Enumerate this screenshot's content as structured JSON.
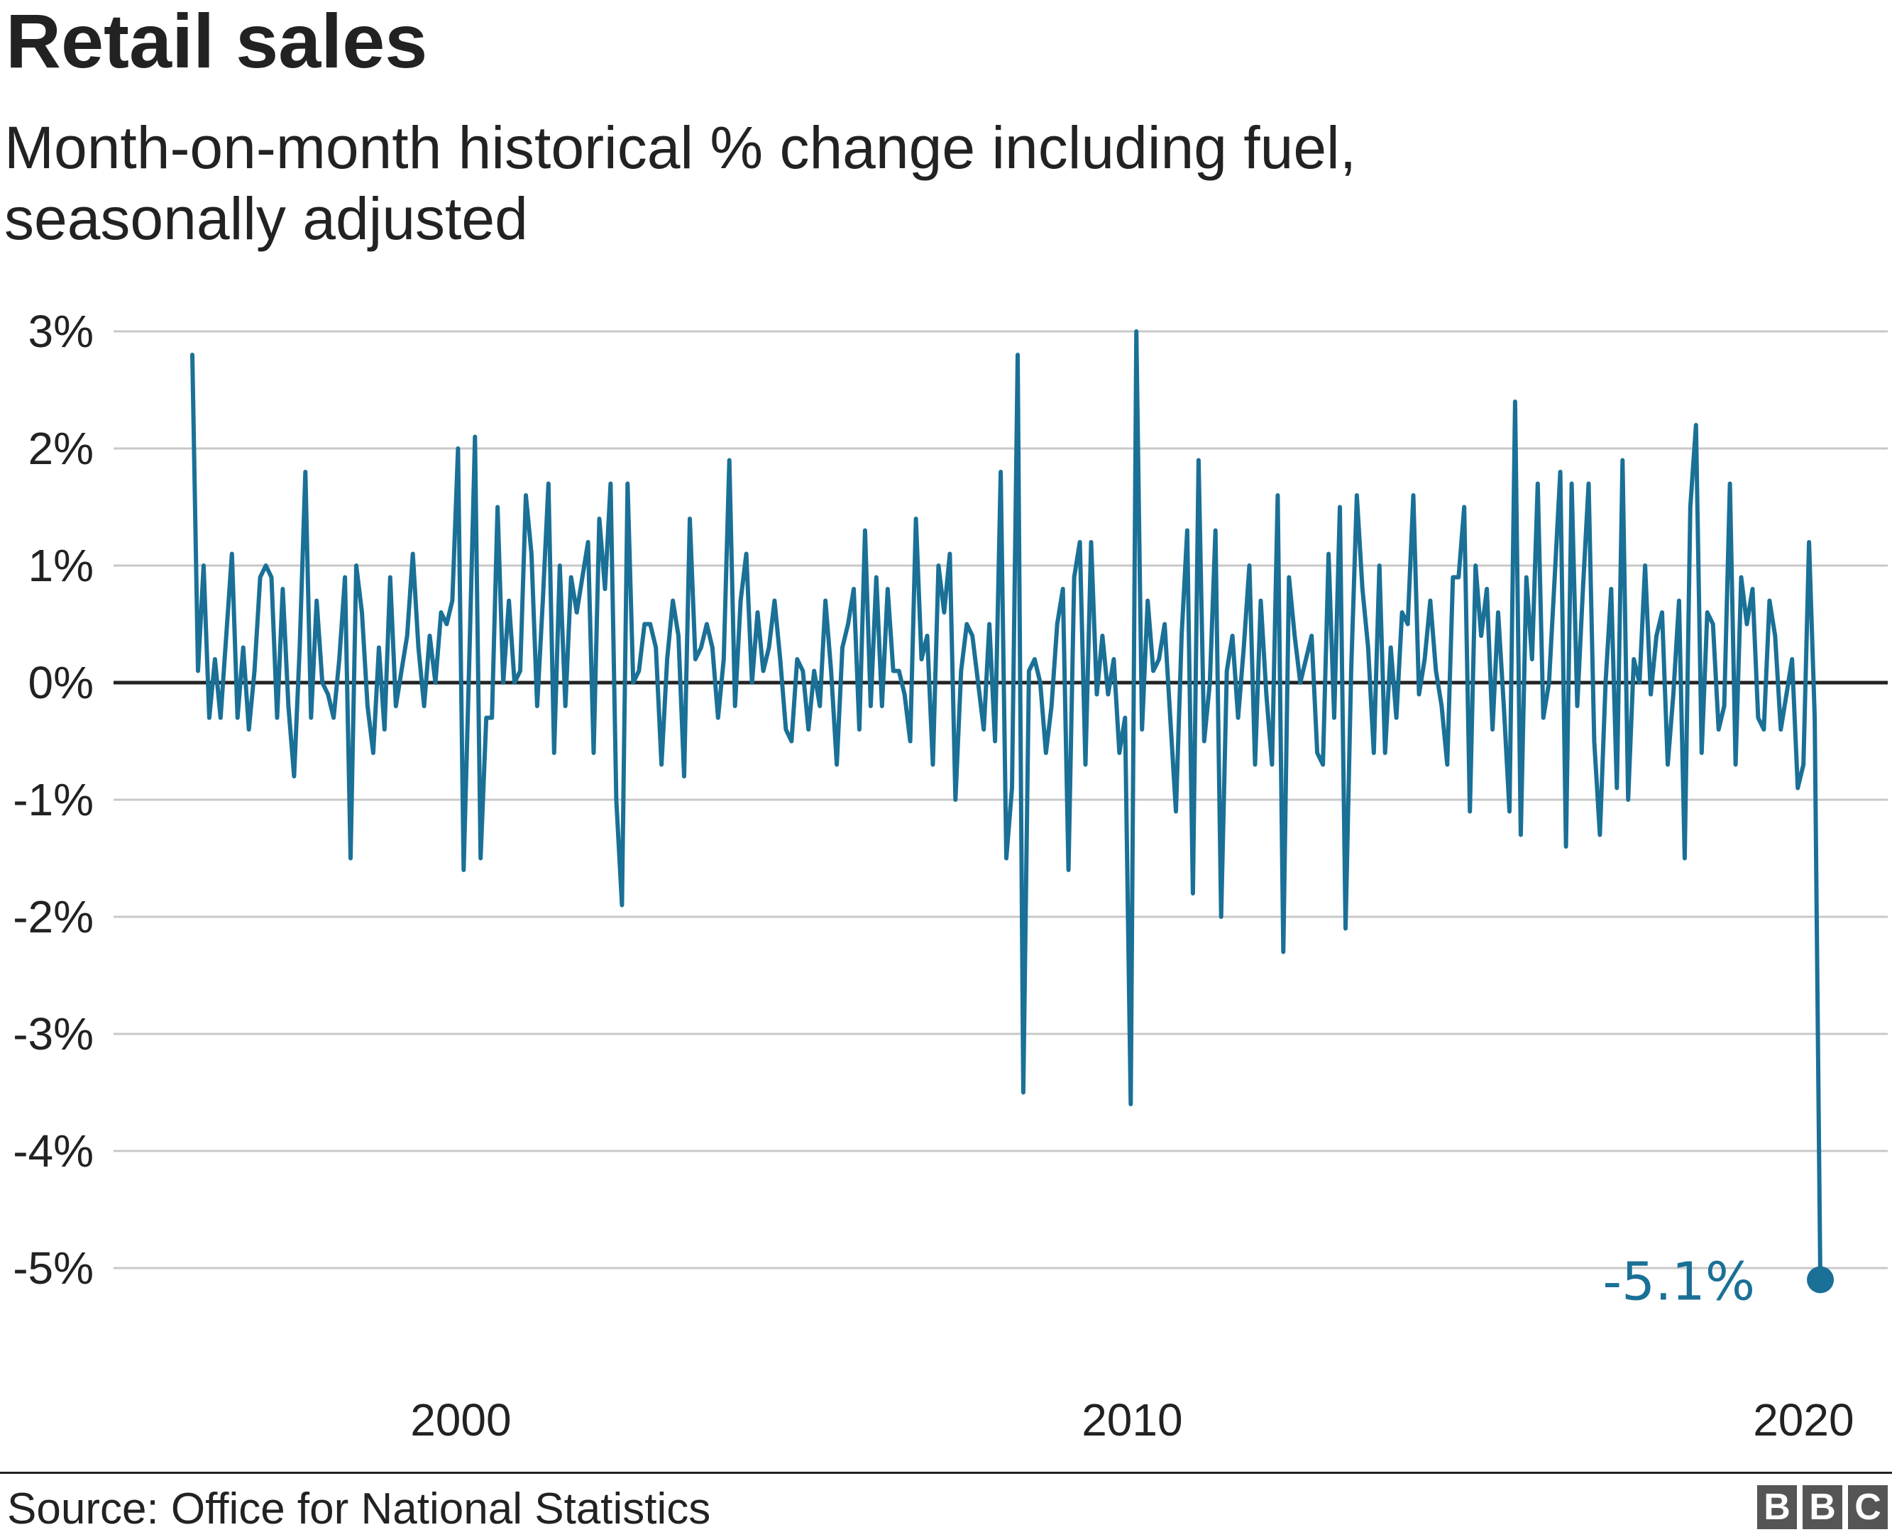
{
  "title": "Retail sales",
  "subtitle": "Month-on-month historical % change including fuel, seasonally adjusted",
  "source": "Source: Office for National Statistics",
  "logo": [
    "B",
    "B",
    "C"
  ],
  "colors": {
    "line": "#1a7096",
    "zero_line": "#222222",
    "grid": "#c8c8c8",
    "text": "#222222"
  },
  "chart_data": {
    "type": "line",
    "title": "Retail sales",
    "subtitle": "Month-on-month historical % change including fuel, seasonally adjusted",
    "xlabel": "",
    "ylabel": "",
    "xlim": [
      1996.0,
      2020.4
    ],
    "ylim": [
      -5,
      3
    ],
    "grid": true,
    "y_ticks": [
      3,
      2,
      1,
      0,
      -1,
      -2,
      -3,
      -4,
      -5
    ],
    "y_tick_labels": [
      "3%",
      "2%",
      "1%",
      "0%",
      "-1%",
      "-2%",
      "-3%",
      "-4%",
      "-5%"
    ],
    "x_ticks": [
      2000,
      2010,
      2020
    ],
    "x_tick_labels": [
      "2000",
      "2010",
      "2020"
    ],
    "annotation": {
      "text": "-5.1%",
      "x": 2020.25,
      "y": -5.1
    },
    "series": [
      {
        "start": "1996-01",
        "frequency": "monthly",
        "values": [
          2.8,
          0.1,
          1.0,
          -0.3,
          0.2,
          -0.3,
          0.4,
          1.1,
          -0.3,
          0.3,
          -0.4,
          0.1,
          0.9,
          1.0,
          0.9,
          -0.3,
          0.8,
          -0.2,
          -0.8,
          0.3,
          1.8,
          -0.3,
          0.7,
          0.0,
          -0.1,
          -0.3,
          0.2,
          0.9,
          -1.5,
          1.0,
          0.6,
          -0.2,
          -0.6,
          0.3,
          -0.4,
          0.9,
          -0.2,
          0.1,
          0.4,
          1.1,
          0.3,
          -0.2,
          0.4,
          0.0,
          0.6,
          0.5,
          0.7,
          2.0,
          -1.6,
          0.2,
          2.1,
          -1.5,
          -0.3,
          -0.3,
          1.5,
          0.0,
          0.7,
          0.0,
          0.1,
          1.6,
          1.1,
          -0.2,
          0.7,
          1.7,
          -0.6,
          1.0,
          -0.2,
          0.9,
          0.6,
          0.9,
          1.2,
          -0.6,
          1.4,
          0.8,
          1.7,
          -1.0,
          -1.9,
          1.7,
          0.0,
          0.1,
          0.5,
          0.5,
          0.3,
          -0.7,
          0.2,
          0.7,
          0.4,
          -0.8,
          1.4,
          0.2,
          0.3,
          0.5,
          0.3,
          -0.3,
          0.2,
          1.9,
          -0.2,
          0.7,
          1.1,
          0.0,
          0.6,
          0.1,
          0.3,
          0.7,
          0.2,
          -0.4,
          -0.5,
          0.2,
          0.1,
          -0.4,
          0.1,
          -0.2,
          0.7,
          0.1,
          -0.7,
          0.3,
          0.5,
          0.8,
          -0.4,
          1.3,
          -0.2,
          0.9,
          -0.2,
          0.8,
          0.1,
          0.1,
          -0.1,
          -0.5,
          1.4,
          0.2,
          0.4,
          -0.7,
          1.0,
          0.6,
          1.1,
          -1.0,
          0.1,
          0.5,
          0.4,
          0.0,
          -0.4,
          0.5,
          -0.5,
          1.8,
          -1.5,
          -0.9,
          2.8,
          -3.5,
          0.1,
          0.2,
          0.0,
          -0.6,
          -0.2,
          0.5,
          0.8,
          -1.6,
          0.9,
          1.2,
          -0.7,
          1.2,
          -0.1,
          0.4,
          -0.1,
          0.2,
          -0.6,
          -0.3,
          -3.6,
          3.0,
          -0.4,
          0.7,
          0.1,
          0.2,
          0.5,
          -0.3,
          -1.1,
          0.4,
          1.3,
          -1.8,
          1.9,
          -0.5,
          0.0,
          1.3,
          -2.0,
          0.1,
          0.4,
          -0.3,
          0.3,
          1.0,
          -0.7,
          0.7,
          -0.1,
          -0.7,
          1.6,
          -2.3,
          0.9,
          0.4,
          0.0,
          0.2,
          0.4,
          -0.6,
          -0.7,
          1.1,
          -0.3,
          1.5,
          -2.1,
          0.1,
          1.6,
          0.8,
          0.3,
          -0.6,
          1.0,
          -0.6,
          0.3,
          -0.3,
          0.6,
          0.5,
          1.6,
          -0.1,
          0.2,
          0.7,
          0.1,
          -0.2,
          -0.7,
          0.9,
          0.9,
          1.5,
          -1.1,
          1.0,
          0.4,
          0.8,
          -0.4,
          0.6,
          -0.2,
          -1.1,
          2.4,
          -1.3,
          0.9,
          0.2,
          1.7,
          -0.3,
          0.0,
          0.9,
          1.8,
          -1.4,
          1.7,
          -0.2,
          0.8,
          1.7,
          -0.5,
          -1.3,
          0.0,
          0.8,
          -0.9,
          1.9,
          -1.0,
          0.2,
          0.0,
          1.0,
          -0.1,
          0.4,
          0.6,
          -0.7,
          -0.1,
          0.7,
          -1.5,
          1.5,
          2.2,
          -0.6,
          0.6,
          0.5,
          -0.4,
          -0.2,
          1.7,
          -0.7,
          0.9,
          0.5,
          0.8,
          -0.3,
          -0.4,
          0.7,
          0.4,
          -0.4,
          -0.1,
          0.2,
          -0.9,
          -0.7,
          1.2,
          -0.3,
          -5.1
        ]
      }
    ]
  }
}
